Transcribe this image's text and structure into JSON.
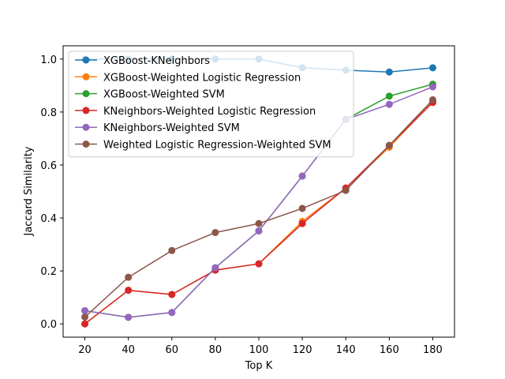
{
  "chart_data": {
    "type": "line",
    "title": "",
    "xlabel": "Top K",
    "ylabel": "Jaccard Similarity",
    "x": [
      20,
      40,
      60,
      80,
      100,
      120,
      140,
      160,
      180
    ],
    "xlim": [
      10,
      190
    ],
    "ylim": [
      -0.05,
      1.05
    ],
    "xticks": [
      20,
      40,
      60,
      80,
      100,
      120,
      140,
      160,
      180
    ],
    "yticks": [
      0.0,
      0.2,
      0.4,
      0.6,
      0.8,
      1.0
    ],
    "ytick_labels": [
      "0.0",
      "0.2",
      "0.4",
      "0.6",
      "0.8",
      "1.0"
    ],
    "grid": false,
    "legend_position": "upper-left",
    "series": [
      {
        "name": "XGBoost-KNeighbors",
        "color": "#1f77b4",
        "values": [
          1.0,
          1.0,
          1.0,
          1.0,
          1.0,
          0.967,
          0.958,
          0.951,
          0.967
        ]
      },
      {
        "name": "XGBoost-Weighted Logistic Regression",
        "color": "#ff7f0e",
        "values": [
          0.0,
          0.127,
          0.111,
          0.203,
          0.227,
          0.387,
          0.513,
          0.667,
          0.839
        ]
      },
      {
        "name": "XGBoost-Weighted SVM",
        "color": "#2ca02c",
        "values": [
          0.05,
          0.025,
          0.043,
          0.212,
          0.351,
          0.558,
          0.772,
          0.86,
          0.905
        ]
      },
      {
        "name": "KNeighbors-Weighted Logistic Regression",
        "color": "#d62728",
        "values": [
          0.0,
          0.127,
          0.111,
          0.203,
          0.227,
          0.379,
          0.513,
          0.674,
          0.836
        ]
      },
      {
        "name": "KNeighbors-Weighted SVM",
        "color": "#9467bd",
        "values": [
          0.05,
          0.025,
          0.043,
          0.212,
          0.351,
          0.558,
          0.772,
          0.829,
          0.895
        ]
      },
      {
        "name": "Weighted Logistic Regression-Weighted SVM",
        "color": "#8c564b",
        "values": [
          0.026,
          0.176,
          0.277,
          0.345,
          0.379,
          0.436,
          0.504,
          0.674,
          0.846
        ]
      }
    ]
  }
}
